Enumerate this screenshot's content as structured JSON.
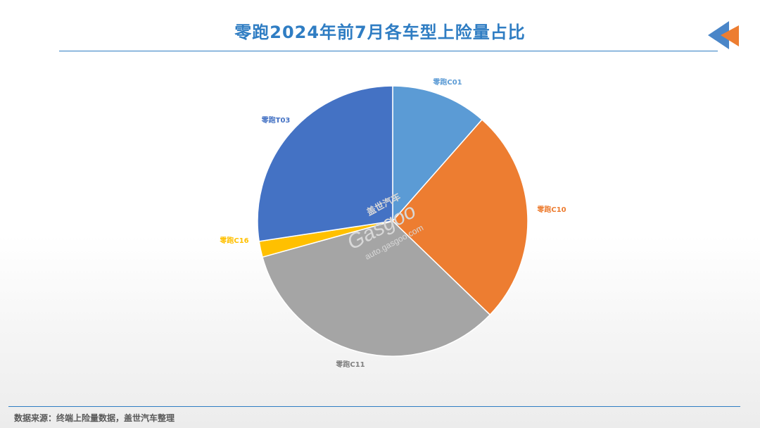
{
  "title": "零跑2024年前7月各车型上险量占比",
  "source": "数据来源：终端上险量数据，盖世汽车整理",
  "watermark": {
    "brand": "Gasgoo",
    "cn": "盖世汽车",
    "url": "auto.gasgoo.com"
  },
  "colors": {
    "accent": "#2f7dc3",
    "logo_blue": "#4a86c8",
    "logo_orange": "#ed7d31"
  },
  "chart_data": {
    "type": "pie",
    "start_angle": "12 o'clock, clockwise",
    "slices": [
      {
        "label": "零跑C01",
        "value": 11.5,
        "color": "#5b9bd5"
      },
      {
        "label": "零跑C10",
        "value": 25.7,
        "color": "#ed7d31"
      },
      {
        "label": "零跑C11",
        "value": 33.5,
        "color": "#a5a5a5"
      },
      {
        "label": "零跑C16",
        "value": 1.9,
        "color": "#ffc000"
      },
      {
        "label": "零跑T03",
        "value": 27.4,
        "color": "#4472c4"
      }
    ]
  }
}
